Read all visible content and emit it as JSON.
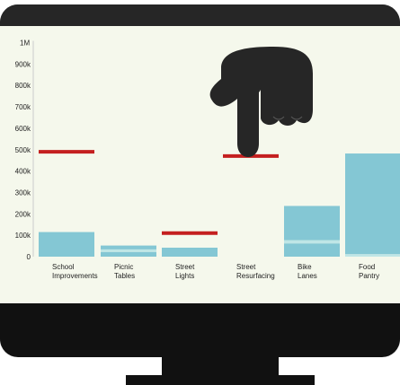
{
  "colors": {
    "bezel": "#111111",
    "bezel_top": "#262626",
    "screen": "#f5f8ec",
    "bar": "#84c7d4",
    "bar_light": "#bfe6e6",
    "target_line": "#c41f1f",
    "hand": "#262626",
    "axis_text": "#222222"
  },
  "hand": {
    "icon": "pointing-hand-icon"
  },
  "chart_data": {
    "type": "bar",
    "ylim": [
      0,
      1000000
    ],
    "y_ticks": [
      {
        "value": 0,
        "label": "0"
      },
      {
        "value": 100000,
        "label": "100k"
      },
      {
        "value": 200000,
        "label": "200k"
      },
      {
        "value": 300000,
        "label": "300k"
      },
      {
        "value": 400000,
        "label": "400k"
      },
      {
        "value": 500000,
        "label": "500k"
      },
      {
        "value": 600000,
        "label": "600k"
      },
      {
        "value": 700000,
        "label": "700k"
      },
      {
        "value": 800000,
        "label": "800k"
      },
      {
        "value": 900000,
        "label": "900k"
      },
      {
        "value": 1000000,
        "label": "1M"
      }
    ],
    "categories": [
      {
        "lines": [
          "School",
          "Improvements"
        ]
      },
      {
        "lines": [
          "Picnic",
          "Tables"
        ]
      },
      {
        "lines": [
          "Street",
          "Lights"
        ]
      },
      {
        "lines": [
          "Street",
          "Resurfacing"
        ]
      },
      {
        "lines": [
          "Bike",
          "Lanes"
        ]
      },
      {
        "lines": [
          "Food",
          "Pantry"
        ]
      }
    ],
    "stacks": [
      [
        {
          "value": 115000,
          "shade": "bar"
        }
      ],
      [
        {
          "value": 22000,
          "shade": "bar"
        },
        {
          "value": 12000,
          "shade": "bar_light"
        },
        {
          "value": 18000,
          "shade": "bar"
        }
      ],
      [
        {
          "value": 42000,
          "shade": "bar"
        }
      ],
      [],
      [
        {
          "value": 62000,
          "shade": "bar"
        },
        {
          "value": 15000,
          "shade": "bar_light"
        },
        {
          "value": 160000,
          "shade": "bar"
        }
      ],
      [
        {
          "value": 12000,
          "shade": "bar_light"
        },
        {
          "value": 470000,
          "shade": "bar"
        }
      ]
    ],
    "targets": [
      490000,
      null,
      110000,
      470000,
      null,
      null
    ]
  }
}
